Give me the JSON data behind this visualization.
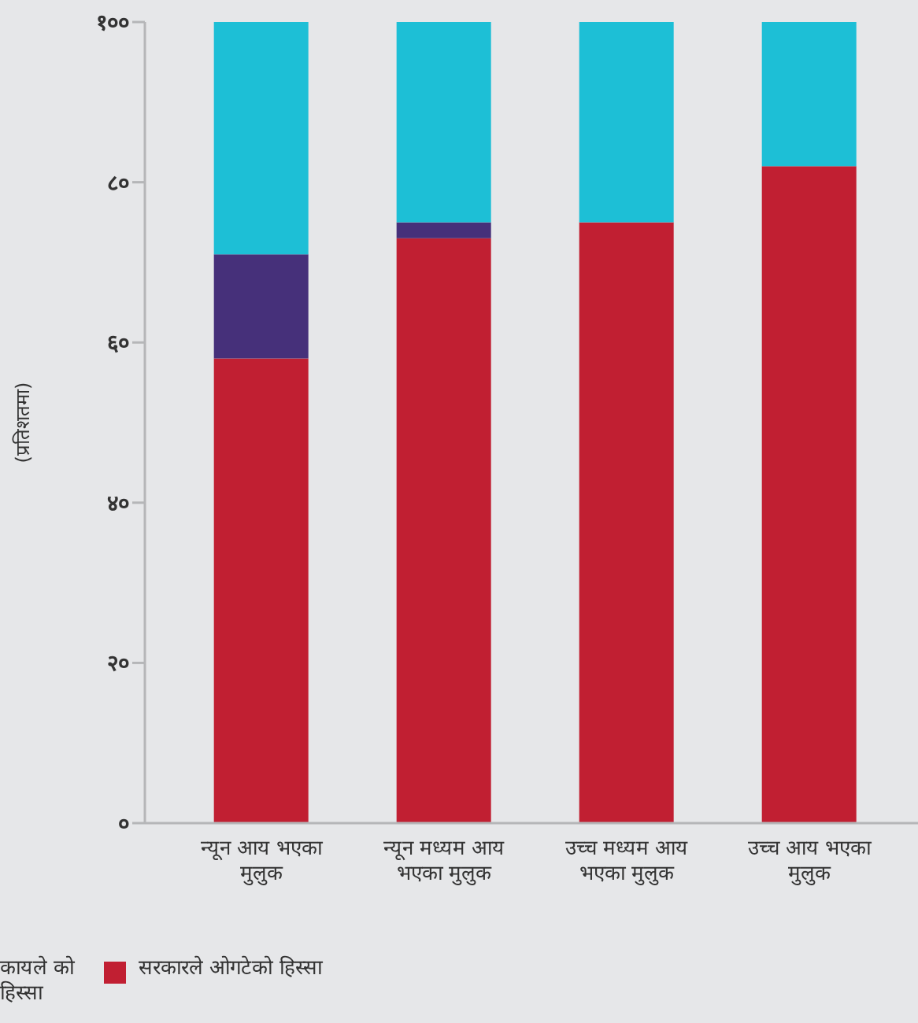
{
  "chart_data": {
    "type": "bar",
    "stacked": true,
    "ylabel": "(प्रतिशतमा)",
    "categories": [
      "न्यून आय भएका मुलुक",
      "न्यून मध्यम आय भएका मुलुक",
      "उच्च मध्यम आय भएका मुलुक",
      "उच्च आय भएका मुलुक"
    ],
    "series": [
      {
        "name": "सरकारले ओगटेको हिस्सा",
        "color": "#c11f32",
        "values": [
          58,
          73,
          75,
          82
        ]
      },
      {
        "color": "#46307a",
        "values": [
          13,
          2,
          0,
          0
        ]
      },
      {
        "color": "#1dbfd6",
        "values": [
          29,
          25,
          25,
          18
        ]
      }
    ],
    "ylim": [
      0,
      100
    ],
    "yticks": [
      {
        "value": 0,
        "label": "०"
      },
      {
        "value": 20,
        "label": "२०"
      },
      {
        "value": 40,
        "label": "४०"
      },
      {
        "value": 60,
        "label": "६०"
      },
      {
        "value": 80,
        "label": "८०"
      },
      {
        "value": 100,
        "label": "१००"
      }
    ],
    "grid": false,
    "legend": "bottom left",
    "annotations": [
      "कायले को हिस्सा"
    ]
  }
}
